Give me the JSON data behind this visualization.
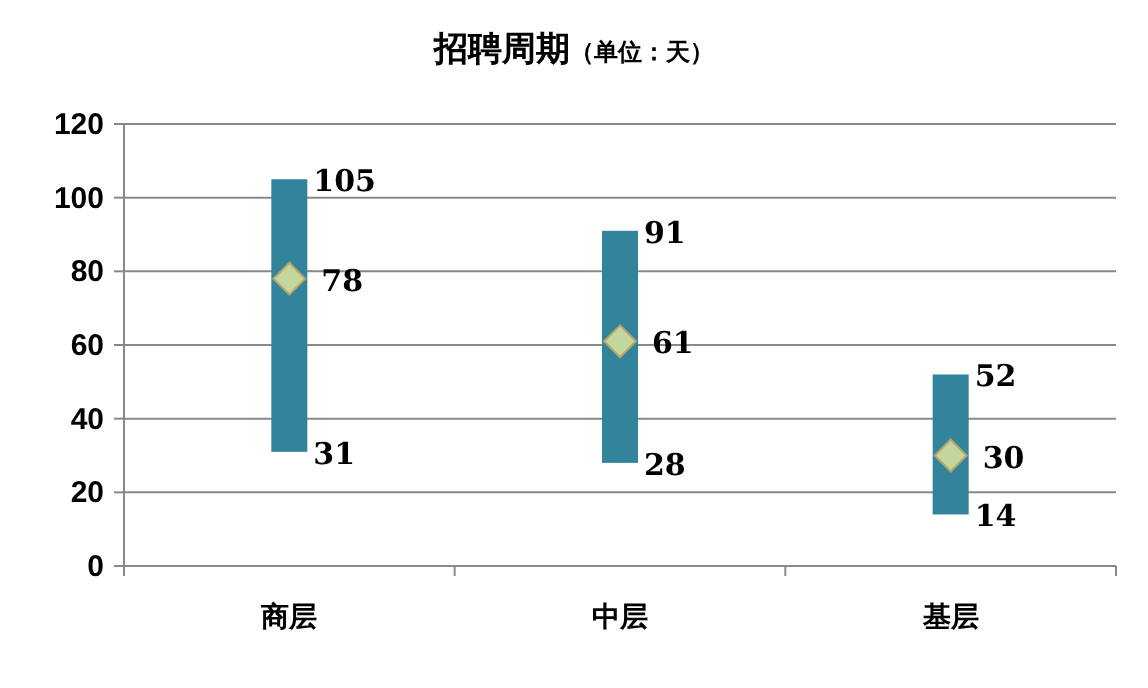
{
  "chart_data": {
    "type": "bar",
    "title": "招聘周期",
    "subtitle": "（单位：天）",
    "categories": [
      "商层",
      "中层",
      "基层"
    ],
    "series": [
      {
        "color": "#31849b",
        "base": [
          31,
          28,
          14
        ],
        "values": [
          74,
          63,
          38
        ]
      },
      {
        "type": "scatter",
        "x": [
          "商层",
          "中层",
          "基层"
        ],
        "color": "#c3d69b",
        "values": [
          78,
          61,
          30
        ],
        "value_labels": [
          "78",
          "61",
          "30"
        ],
        "marker": "diamond"
      }
    ],
    "annotations": [
      {
        "text": "105",
        "x": "商层",
        "y": 105
      },
      {
        "text": "31",
        "x": "商层",
        "y": 31
      },
      {
        "text": "91",
        "x": "中层",
        "y": 91
      },
      {
        "text": "28",
        "x": "中层",
        "y": 28
      },
      {
        "text": "52",
        "x": "基层",
        "y": 52
      },
      {
        "text": "14",
        "x": "基层",
        "y": 14
      }
    ],
    "ylim": [
      0,
      120
    ],
    "yticks": [
      0,
      20,
      40,
      60,
      80,
      100,
      120
    ],
    "grid": "y"
  }
}
